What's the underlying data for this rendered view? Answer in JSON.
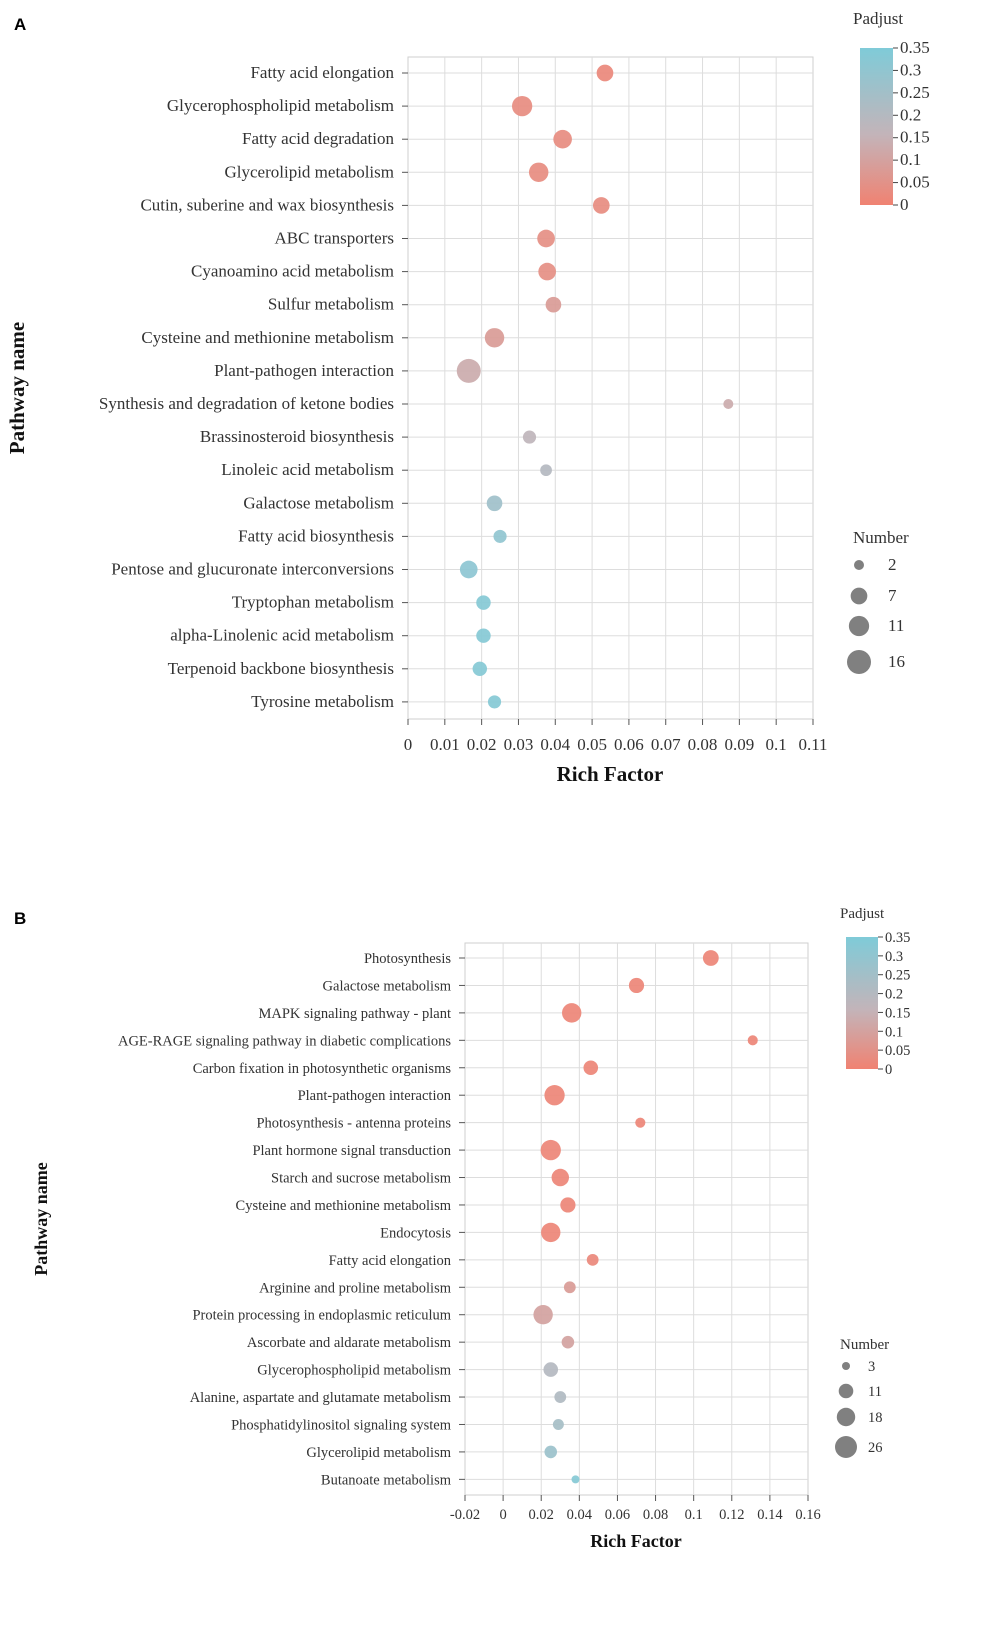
{
  "colors": {
    "low": "#f08272",
    "mid": "#c3b4b9",
    "high": "#7fcbd8",
    "grid": "#dddddd",
    "bubble_legend": "#808080"
  },
  "chart_data": [
    {
      "type": "scatter",
      "panel_label": "A",
      "title": "",
      "xlabel": "Rich Factor",
      "ylabel": "Pathway name",
      "xlim": [
        0,
        0.11
      ],
      "xticks": [
        0,
        0.01,
        0.02,
        0.03,
        0.04,
        0.05,
        0.06,
        0.07,
        0.08,
        0.09,
        0.1,
        0.11
      ],
      "xtick_labels": [
        "0",
        "0.01",
        "0.02",
        "0.03",
        "0.04",
        "0.05",
        "0.06",
        "0.07",
        "0.08",
        "0.09",
        "0.1",
        "0.11"
      ],
      "grid": true,
      "color_legend": {
        "title": "Padjust",
        "ticks": [
          "0.35",
          "0.3",
          "0.25",
          "0.2",
          "0.15",
          "0.1",
          "0.05",
          "0"
        ],
        "max": 0.35
      },
      "size_legend": {
        "title": "Number",
        "values": [
          2,
          7,
          11,
          16
        ]
      },
      "categories": [
        "Fatty acid elongation",
        "Glycerophospholipid metabolism",
        "Fatty acid degradation",
        "Glycerolipid metabolism",
        "Cutin, suberine and wax biosynthesis",
        "ABC transporters",
        "Cyanoamino acid metabolism",
        "Sulfur metabolism",
        "Cysteine and methionine metabolism",
        "Plant-pathogen interaction",
        "Synthesis and degradation of ketone bodies",
        "Brassinosteroid biosynthesis",
        "Linoleic acid metabolism",
        "Galactose metabolism",
        "Fatty acid biosynthesis",
        "Pentose and glucuronate interconversions",
        "Tryptophan metabolism",
        "alpha-Linolenic acid metabolism",
        "Terpenoid backbone biosynthesis",
        "Tyrosine metabolism"
      ],
      "rich_factor": [
        0.0535,
        0.031,
        0.042,
        0.0355,
        0.0525,
        0.0375,
        0.0378,
        0.0395,
        0.0235,
        0.0165,
        0.087,
        0.033,
        0.0375,
        0.0235,
        0.025,
        0.0165,
        0.0205,
        0.0205,
        0.0195,
        0.0235
      ],
      "number": [
        7,
        11,
        9,
        10,
        7,
        8,
        8,
        6,
        10,
        16,
        2,
        4,
        3,
        6,
        4,
        8,
        5,
        5,
        5,
        4
      ],
      "padjust": [
        0.02,
        0.03,
        0.03,
        0.03,
        0.03,
        0.04,
        0.04,
        0.08,
        0.08,
        0.13,
        0.13,
        0.17,
        0.2,
        0.26,
        0.3,
        0.31,
        0.33,
        0.33,
        0.33,
        0.33
      ]
    },
    {
      "type": "scatter",
      "panel_label": "B",
      "title": "",
      "xlabel": "Rich Factor",
      "ylabel": "Pathway name",
      "xlim": [
        -0.02,
        0.16
      ],
      "xticks": [
        -0.02,
        0,
        0.02,
        0.04,
        0.06,
        0.08,
        0.1,
        0.12,
        0.14,
        0.16
      ],
      "xtick_labels": [
        "-0.02",
        "0",
        "0.02",
        "0.04",
        "0.06",
        "0.08",
        "0.1",
        "0.12",
        "0.14",
        "0.16"
      ],
      "grid": true,
      "color_legend": {
        "title": "Padjust",
        "ticks": [
          "0.35",
          "0.3",
          "0.25",
          "0.2",
          "0.15",
          "0.1",
          "0.05",
          "0"
        ],
        "max": 0.35
      },
      "size_legend": {
        "title": "Number",
        "values": [
          3,
          11,
          18,
          26
        ]
      },
      "categories": [
        "Photosynthesis",
        "Galactose metabolism",
        "MAPK signaling pathway - plant",
        "AGE-RAGE signaling pathway in diabetic complications",
        "Carbon fixation in photosynthetic organisms",
        "Plant-pathogen interaction",
        "Photosynthesis - antenna proteins",
        "Plant hormone signal transduction",
        "Starch and sucrose metabolism",
        "Cysteine and methionine metabolism",
        "Endocytosis",
        "Fatty acid elongation",
        "Arginine and proline metabolism",
        "Protein processing in endoplasmic reticulum",
        "Ascorbate and aldarate metabolism",
        "Glycerophospholipid metabolism",
        "Alanine, aspartate and glutamate metabolism",
        "Phosphatidylinositol signaling system",
        "Glycerolipid metabolism",
        "Butanoate metabolism"
      ],
      "rich_factor": [
        0.109,
        0.07,
        0.036,
        0.131,
        0.046,
        0.027,
        0.072,
        0.025,
        0.03,
        0.034,
        0.025,
        0.047,
        0.035,
        0.021,
        0.034,
        0.025,
        0.03,
        0.029,
        0.025,
        0.038
      ],
      "number": [
        13,
        12,
        20,
        5,
        11,
        22,
        5,
        22,
        16,
        12,
        20,
        7,
        7,
        20,
        8,
        11,
        7,
        6,
        8,
        3
      ],
      "padjust": [
        0.01,
        0.01,
        0.01,
        0.01,
        0.01,
        0.01,
        0.01,
        0.01,
        0.01,
        0.01,
        0.01,
        0.02,
        0.08,
        0.1,
        0.1,
        0.2,
        0.21,
        0.24,
        0.27,
        0.33
      ]
    }
  ]
}
